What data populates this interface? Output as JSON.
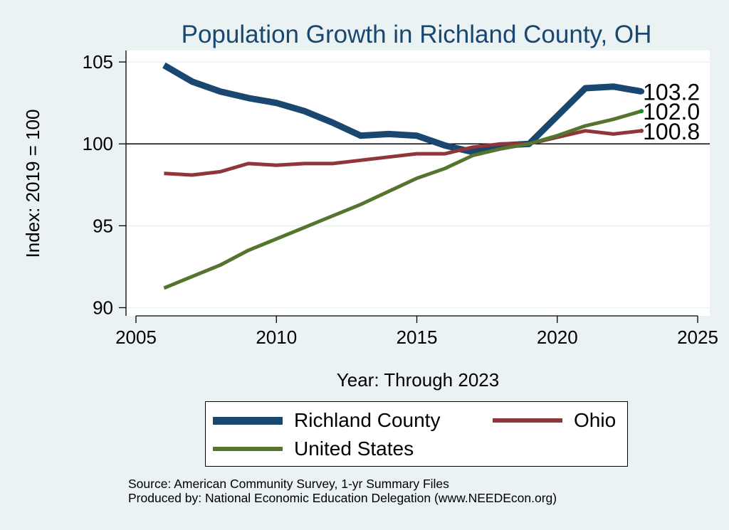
{
  "chart_data": {
    "type": "line",
    "title": "Population Growth in Richland County, OH",
    "xlabel": "Year: Through 2023",
    "ylabel": "Index: 2019 = 100",
    "xlim": [
      2005,
      2025
    ],
    "ylim": [
      89.5,
      105.7
    ],
    "xticks": [
      2005,
      2010,
      2015,
      2020,
      2025
    ],
    "yticks": [
      90,
      95,
      100,
      105
    ],
    "reference_line": 100,
    "grid": true,
    "x": [
      2006,
      2007,
      2008,
      2009,
      2010,
      2011,
      2012,
      2013,
      2014,
      2015,
      2016,
      2017,
      2018,
      2019,
      2020,
      2021,
      2022,
      2023
    ],
    "series": [
      {
        "name": "Richland  County",
        "color": "#1a476f",
        "values": [
          104.8,
          103.8,
          103.2,
          102.8,
          102.5,
          102.0,
          101.3,
          100.5,
          100.6,
          100.5,
          99.9,
          99.5,
          99.9,
          100.0,
          101.7,
          103.4,
          103.5,
          103.2
        ],
        "end_label": "103.2"
      },
      {
        "name": "Ohio",
        "color": "#90353b",
        "values": [
          98.2,
          98.1,
          98.3,
          98.8,
          98.7,
          98.8,
          98.8,
          99.0,
          99.2,
          99.4,
          99.4,
          99.8,
          100.0,
          100.0,
          100.4,
          100.8,
          100.6,
          100.8
        ],
        "end_label": "100.8"
      },
      {
        "name": "United States",
        "color": "#55752f",
        "values": [
          91.2,
          91.9,
          92.6,
          93.5,
          94.2,
          94.9,
          95.6,
          96.3,
          97.1,
          97.9,
          98.5,
          99.3,
          99.7,
          100.0,
          100.5,
          101.1,
          101.5,
          102.0
        ],
        "end_label": "102.0"
      }
    ],
    "legend": {
      "position": "bottom",
      "entries": [
        "Richland  County",
        "Ohio",
        "United States"
      ]
    },
    "notes": [
      "Source: American Community Survey, 1-yr Summary Files",
      "Produced by: National Economic Education Delegation (www.NEEDEcon.org)"
    ]
  }
}
